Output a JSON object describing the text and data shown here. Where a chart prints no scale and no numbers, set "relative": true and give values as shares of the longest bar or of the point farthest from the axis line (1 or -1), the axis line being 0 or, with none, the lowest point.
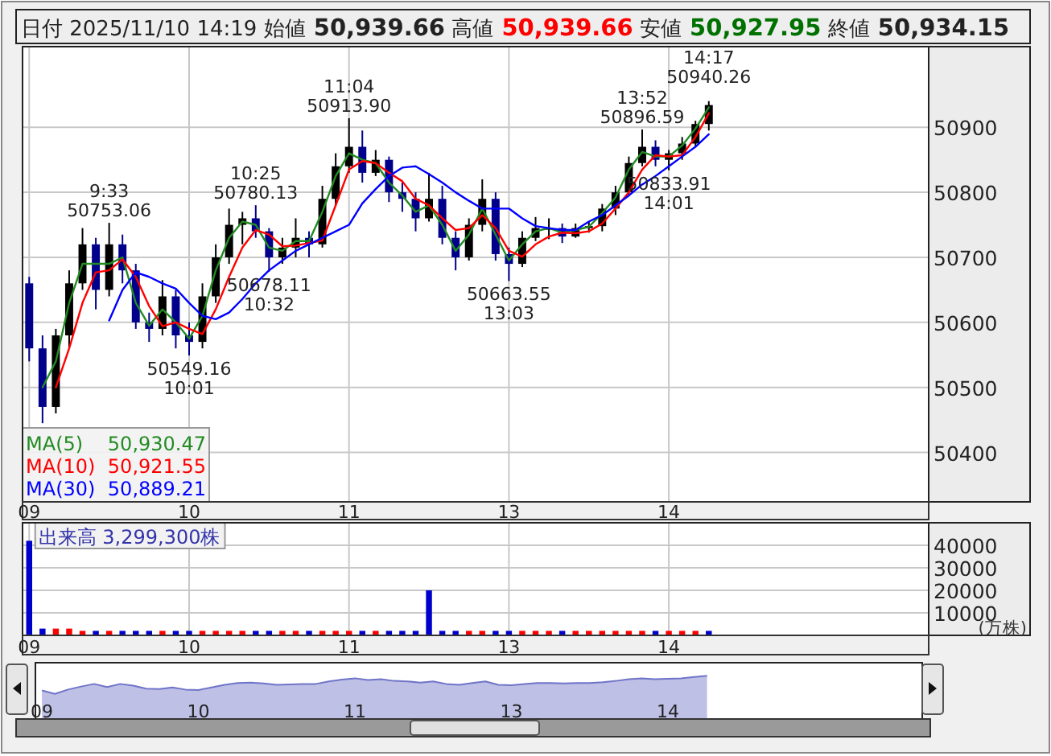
{
  "chart_data": [
    {
      "type": "candlestick",
      "title": "日付 2025/11/10 14:19 始値 50,939.66 高値 50,939.66 安値 50,927.95 終値 50,934.15",
      "categories": [
        "09",
        null,
        null,
        null,
        null,
        null,
        null,
        null,
        null,
        null,
        null,
        null,
        "10",
        null,
        null,
        null,
        null,
        null,
        null,
        null,
        null,
        null,
        null,
        null,
        "11",
        null,
        null,
        null,
        null,
        null,
        null,
        null,
        null,
        null,
        null,
        null,
        "13",
        null,
        null,
        null,
        null,
        null,
        null,
        null,
        null,
        null,
        null,
        null,
        "14",
        null,
        null,
        null,
        null,
        null,
        null,
        null,
        null,
        null,
        null,
        null,
        null,
        null,
        null,
        null,
        null,
        null,
        null,
        null
      ],
      "series": [
        {
          "type": "candlestick",
          "ohlc": [
            [
              50660,
              50670,
              50540,
              50560
            ],
            [
              50560,
              50580,
              50445,
              50470
            ],
            [
              50470,
              50590,
              50460,
              50580
            ],
            [
              50580,
              50680,
              50560,
              50660
            ],
            [
              50660,
              50745,
              50650,
              50720
            ],
            [
              50720,
              50730,
              50620,
              50650
            ],
            [
              50650,
              50753.06,
              50640,
              50720
            ],
            [
              50720,
              50735,
              50660,
              50680
            ],
            [
              50680,
              50690,
              50590,
              50600
            ],
            [
              50600,
              50615,
              50570,
              50590
            ],
            [
              50590,
              50665,
              50580,
              50640
            ],
            [
              50640,
              50650,
              50560,
              50580
            ],
            [
              50580,
              50600,
              50549.16,
              50570
            ],
            [
              50570,
              50660,
              50560,
              50640
            ],
            [
              50640,
              50720,
              50630,
              50700
            ],
            [
              50700,
              50775,
              50690,
              50750
            ],
            [
              50750,
              50770,
              50720,
              50760
            ],
            [
              50760,
              50780.13,
              50730,
              50740
            ],
            [
              50740,
              50745,
              50678.11,
              50700
            ],
            [
              50700,
              50730,
              50690,
              50715
            ],
            [
              50715,
              50760,
              50700,
              50730
            ],
            [
              50730,
              50740,
              50700,
              50720
            ],
            [
              50720,
              50810,
              50715,
              50790
            ],
            [
              50790,
              50860,
              50780,
              50840
            ],
            [
              50840,
              50913.9,
              50830,
              50870
            ],
            [
              50870,
              50895,
              50815,
              50830
            ],
            [
              50830,
              50865,
              50825,
              50850
            ],
            [
              50850,
              50855,
              50785,
              50800
            ],
            [
              50800,
              50815,
              50770,
              50790
            ],
            [
              50790,
              50800,
              50740,
              50760
            ],
            [
              50760,
              50830,
              50755,
              50790
            ],
            [
              50790,
              50810,
              50720,
              50730
            ],
            [
              50730,
              50740,
              50680,
              50700
            ],
            [
              50700,
              50760,
              50695,
              50750
            ],
            [
              50750,
              50820,
              50740,
              50790
            ],
            [
              50790,
              50800,
              50695,
              50705
            ],
            [
              50705,
              50715,
              50663.55,
              50690
            ],
            [
              50690,
              50740,
              50685,
              50730
            ],
            [
              50730,
              50762,
              50725,
              50745
            ],
            [
              50745,
              50760,
              50728,
              50745
            ],
            [
              50745,
              50752,
              50722,
              50732
            ],
            [
              50732,
              50752,
              50730,
              50745
            ],
            [
              50745,
              50755,
              50738,
              50748
            ],
            [
              50748,
              50782,
              50740,
              50775
            ],
            [
              50775,
              50810,
              50765,
              50800
            ],
            [
              50800,
              50855,
              50795,
              50845
            ],
            [
              50845,
              50896.59,
              50840,
              50870
            ],
            [
              50870,
              50880,
              50840,
              50850
            ],
            [
              50850,
              50865,
              50833.91,
              50860
            ],
            [
              50860,
              50885,
              50850,
              50875
            ],
            [
              50875,
              50910,
              50870,
              50905
            ],
            [
              50905,
              50940.26,
              50895,
              50934.15
            ],
            null,
            null,
            null,
            null,
            null,
            null,
            null,
            null,
            null,
            null,
            null,
            null,
            null,
            null,
            null,
            null
          ],
          "colors": [
            "#00008b",
            "#00008b",
            "#000000",
            "#000000",
            "#000000",
            "#00008b",
            "#000000",
            "#00008b",
            "#00008b",
            "#00008b",
            "#000000",
            "#00008b",
            "#00008b",
            "#000000",
            "#000000",
            "#000000",
            "#000000",
            "#00008b",
            "#00008b",
            "#000000",
            "#000000",
            "#00008b",
            "#000000",
            "#000000",
            "#000000",
            "#00008b",
            "#000000",
            "#00008b",
            "#00008b",
            "#00008b",
            "#000000",
            "#00008b",
            "#00008b",
            "#000000",
            "#000000",
            "#00008b",
            "#00008b",
            "#000000",
            "#000000",
            "#000000",
            "#00008b",
            "#000000",
            "#000000",
            "#000000",
            "#000000",
            "#000000",
            "#000000",
            "#00008b",
            "#000000",
            "#000000",
            "#000000",
            "#000000",
            null,
            null,
            null,
            null,
            null,
            null,
            null,
            null,
            null,
            null,
            null,
            null,
            null,
            null,
            null,
            null
          ]
        },
        {
          "type": "line",
          "name": "MA(5)",
          "color": "#228b22",
          "values": [
            null,
            50500,
            50540,
            50630,
            50690,
            50690,
            50690,
            50700,
            50630,
            50595,
            50620,
            50600,
            50575,
            50610,
            50680,
            50730,
            50755,
            50750,
            50715,
            50710,
            50725,
            50725,
            50770,
            50825,
            50860,
            50850,
            50845,
            50815,
            50795,
            50770,
            50780,
            50750,
            50710,
            50735,
            50775,
            50735,
            50695,
            50720,
            50740,
            50745,
            50738,
            50742,
            50747,
            50768,
            50792,
            50835,
            50862,
            50855,
            50855,
            50872,
            50898,
            50930.47,
            null,
            null,
            null,
            null,
            null,
            null,
            null,
            null,
            null,
            null,
            null,
            null,
            null,
            null,
            null,
            null
          ]
        },
        {
          "type": "line",
          "name": "MA(10)",
          "color": "#ff0000",
          "values": [
            null,
            null,
            50500,
            50560,
            50630,
            50677,
            50680,
            50697,
            50670,
            50625,
            50594,
            50600,
            50590,
            50582,
            50620,
            50670,
            50715,
            50742,
            50735,
            50717,
            50718,
            50722,
            50726,
            50780,
            50835,
            50848,
            50845,
            50830,
            50817,
            50790,
            50780,
            50760,
            50742,
            50745,
            50765,
            50745,
            50710,
            50701,
            50720,
            50732,
            50738,
            50737,
            50740,
            50752,
            50775,
            50800,
            50835,
            50857,
            50855,
            50857,
            50885,
            50921.55,
            null,
            null,
            null,
            null,
            null,
            null,
            null,
            null,
            null,
            null,
            null,
            null,
            null,
            null,
            null,
            null
          ]
        },
        {
          "type": "line",
          "name": "MA(30)",
          "color": "#0000ff",
          "values": [
            null,
            null,
            null,
            null,
            null,
            null,
            50603,
            50650,
            50677,
            50670,
            50660,
            50652,
            50630,
            50610,
            50605,
            50615,
            50636,
            50660,
            50680,
            50695,
            50710,
            50720,
            50730,
            50740,
            50750,
            50783,
            50805,
            50825,
            50838,
            50840,
            50828,
            50815,
            50800,
            50787,
            50775,
            50775,
            50775,
            50760,
            50748,
            50745,
            50742,
            50742,
            50755,
            50765,
            50780,
            50795,
            50812,
            50825,
            50840,
            50855,
            50870,
            50889.21,
            null,
            null,
            null,
            null,
            null,
            null,
            null,
            null,
            null,
            null,
            null,
            null,
            null,
            null,
            null,
            null
          ]
        }
      ],
      "ylim": [
        50324,
        51024
      ],
      "yticks": [
        50400,
        50500,
        50600,
        50700,
        50800,
        50900
      ],
      "grid": true,
      "legend": "bottom left",
      "annotations": [
        {
          "text": "9:33\n50753.06",
          "y": 50753.06
        },
        {
          "text": "50549.16\n10:01",
          "y": 50549.16
        },
        {
          "text": "10:25\n50780.13",
          "y": 50780.13
        },
        {
          "text": "50678.11\n10:32",
          "y": 50678.11
        },
        {
          "text": "11:04\n50913.90",
          "y": 50913.9
        },
        {
          "text": "50663.55\n13:03",
          "y": 50663.55
        },
        {
          "text": "13:52\n50896.59",
          "y": 50896.59
        },
        {
          "text": "50833.91\n14:01",
          "y": 50833.91
        },
        {
          "text": "14:17\n50940.26",
          "y": 50940.26
        },
        "50,930.47",
        "50,921.55",
        "50,889.21"
      ]
    },
    {
      "type": "bar",
      "title": "出来高 3,299,300株",
      "ylabel": "(万株)",
      "categories": [
        "09",
        null,
        null,
        null,
        null,
        null,
        null,
        null,
        null,
        null,
        null,
        null,
        "10",
        null,
        null,
        null,
        null,
        null,
        null,
        null,
        null,
        null,
        null,
        null,
        "11",
        null,
        null,
        null,
        null,
        null,
        null,
        null,
        null,
        null,
        null,
        null,
        "13",
        null,
        null,
        null,
        null,
        null,
        null,
        null,
        null,
        null,
        null,
        null,
        "14",
        null,
        null,
        null,
        null,
        null,
        null,
        null,
        null,
        null,
        null,
        null,
        null,
        null,
        null,
        null,
        null,
        null,
        null,
        null
      ],
      "values": [
        42000,
        3000,
        3000,
        3000,
        2000,
        2000,
        2000,
        2000,
        2000,
        2000,
        2000,
        2000,
        2000,
        2000,
        2000,
        2000,
        2000,
        2000,
        2000,
        2000,
        2000,
        2000,
        2000,
        2000,
        2000,
        2000,
        2000,
        2000,
        2000,
        2000,
        20000,
        2000,
        2000,
        2000,
        2000,
        2000,
        2000,
        2000,
        2000,
        2000,
        2000,
        2000,
        2000,
        2000,
        2000,
        2000,
        2000,
        2000,
        2000,
        2000,
        2000,
        2000,
        null,
        null,
        null,
        null,
        null,
        null,
        null,
        null,
        null,
        null,
        null,
        null,
        null,
        null,
        null,
        null
      ],
      "colors": [
        "#0000cd",
        "#0000cd",
        "#ff0000",
        "#ff0000",
        "#ff0000",
        "#0000cd",
        "#ff0000",
        "#0000cd",
        "#0000cd",
        "#0000cd",
        "#ff0000",
        "#0000cd",
        "#0000cd",
        "#ff0000",
        "#ff0000",
        "#ff0000",
        "#ff0000",
        "#0000cd",
        "#0000cd",
        "#ff0000",
        "#ff0000",
        "#0000cd",
        "#ff0000",
        "#ff0000",
        "#ff0000",
        "#0000cd",
        "#ff0000",
        "#0000cd",
        "#0000cd",
        "#0000cd",
        "#0000cd",
        "#0000cd",
        "#0000cd",
        "#ff0000",
        "#ff0000",
        "#0000cd",
        "#0000cd",
        "#ff0000",
        "#ff0000",
        "#ff0000",
        "#0000cd",
        "#ff0000",
        "#ff0000",
        "#ff0000",
        "#ff0000",
        "#ff0000",
        "#ff0000",
        "#0000cd",
        "#ff0000",
        "#ff0000",
        "#ff0000",
        "#0000cd",
        null,
        null,
        null,
        null,
        null,
        null,
        null,
        null,
        null,
        null,
        null,
        null,
        null,
        null,
        null,
        null
      ],
      "ylim": [
        0,
        50000
      ],
      "yticks": [
        10000,
        20000,
        30000,
        40000
      ],
      "grid": true
    },
    {
      "type": "area",
      "relative": true,
      "categories": [
        "09",
        null,
        null,
        null,
        null,
        null,
        null,
        null,
        null,
        null,
        null,
        null,
        "10",
        null,
        null,
        null,
        null,
        null,
        null,
        null,
        null,
        null,
        null,
        null,
        "11",
        null,
        null,
        null,
        null,
        null,
        null,
        null,
        null,
        null,
        null,
        null,
        "13",
        null,
        null,
        null,
        null,
        null,
        null,
        null,
        null,
        null,
        null,
        null,
        "14",
        null,
        null,
        null,
        null,
        null,
        null,
        null,
        null,
        null,
        null,
        null,
        null,
        null,
        null,
        null,
        null,
        null,
        null,
        null
      ],
      "series": [
        {
          "color": "#6f74c8",
          "values": [
            0.66,
            0.58,
            0.68,
            0.75,
            0.81,
            0.74,
            0.81,
            0.77,
            0.7,
            0.69,
            0.73,
            0.68,
            0.67,
            0.73,
            0.79,
            0.83,
            0.84,
            0.82,
            0.79,
            0.8,
            0.81,
            0.81,
            0.87,
            0.91,
            0.94,
            0.9,
            0.92,
            0.88,
            0.87,
            0.84,
            0.87,
            0.81,
            0.79,
            0.83,
            0.87,
            0.79,
            0.78,
            0.81,
            0.83,
            0.83,
            0.82,
            0.83,
            0.83,
            0.85,
            0.88,
            0.92,
            0.94,
            0.92,
            0.93,
            0.94,
            0.97,
            1,
            null,
            null,
            null,
            null,
            null,
            null,
            null,
            null,
            null,
            null,
            null,
            null,
            null,
            null,
            null,
            null
          ]
        }
      ]
    }
  ]
}
